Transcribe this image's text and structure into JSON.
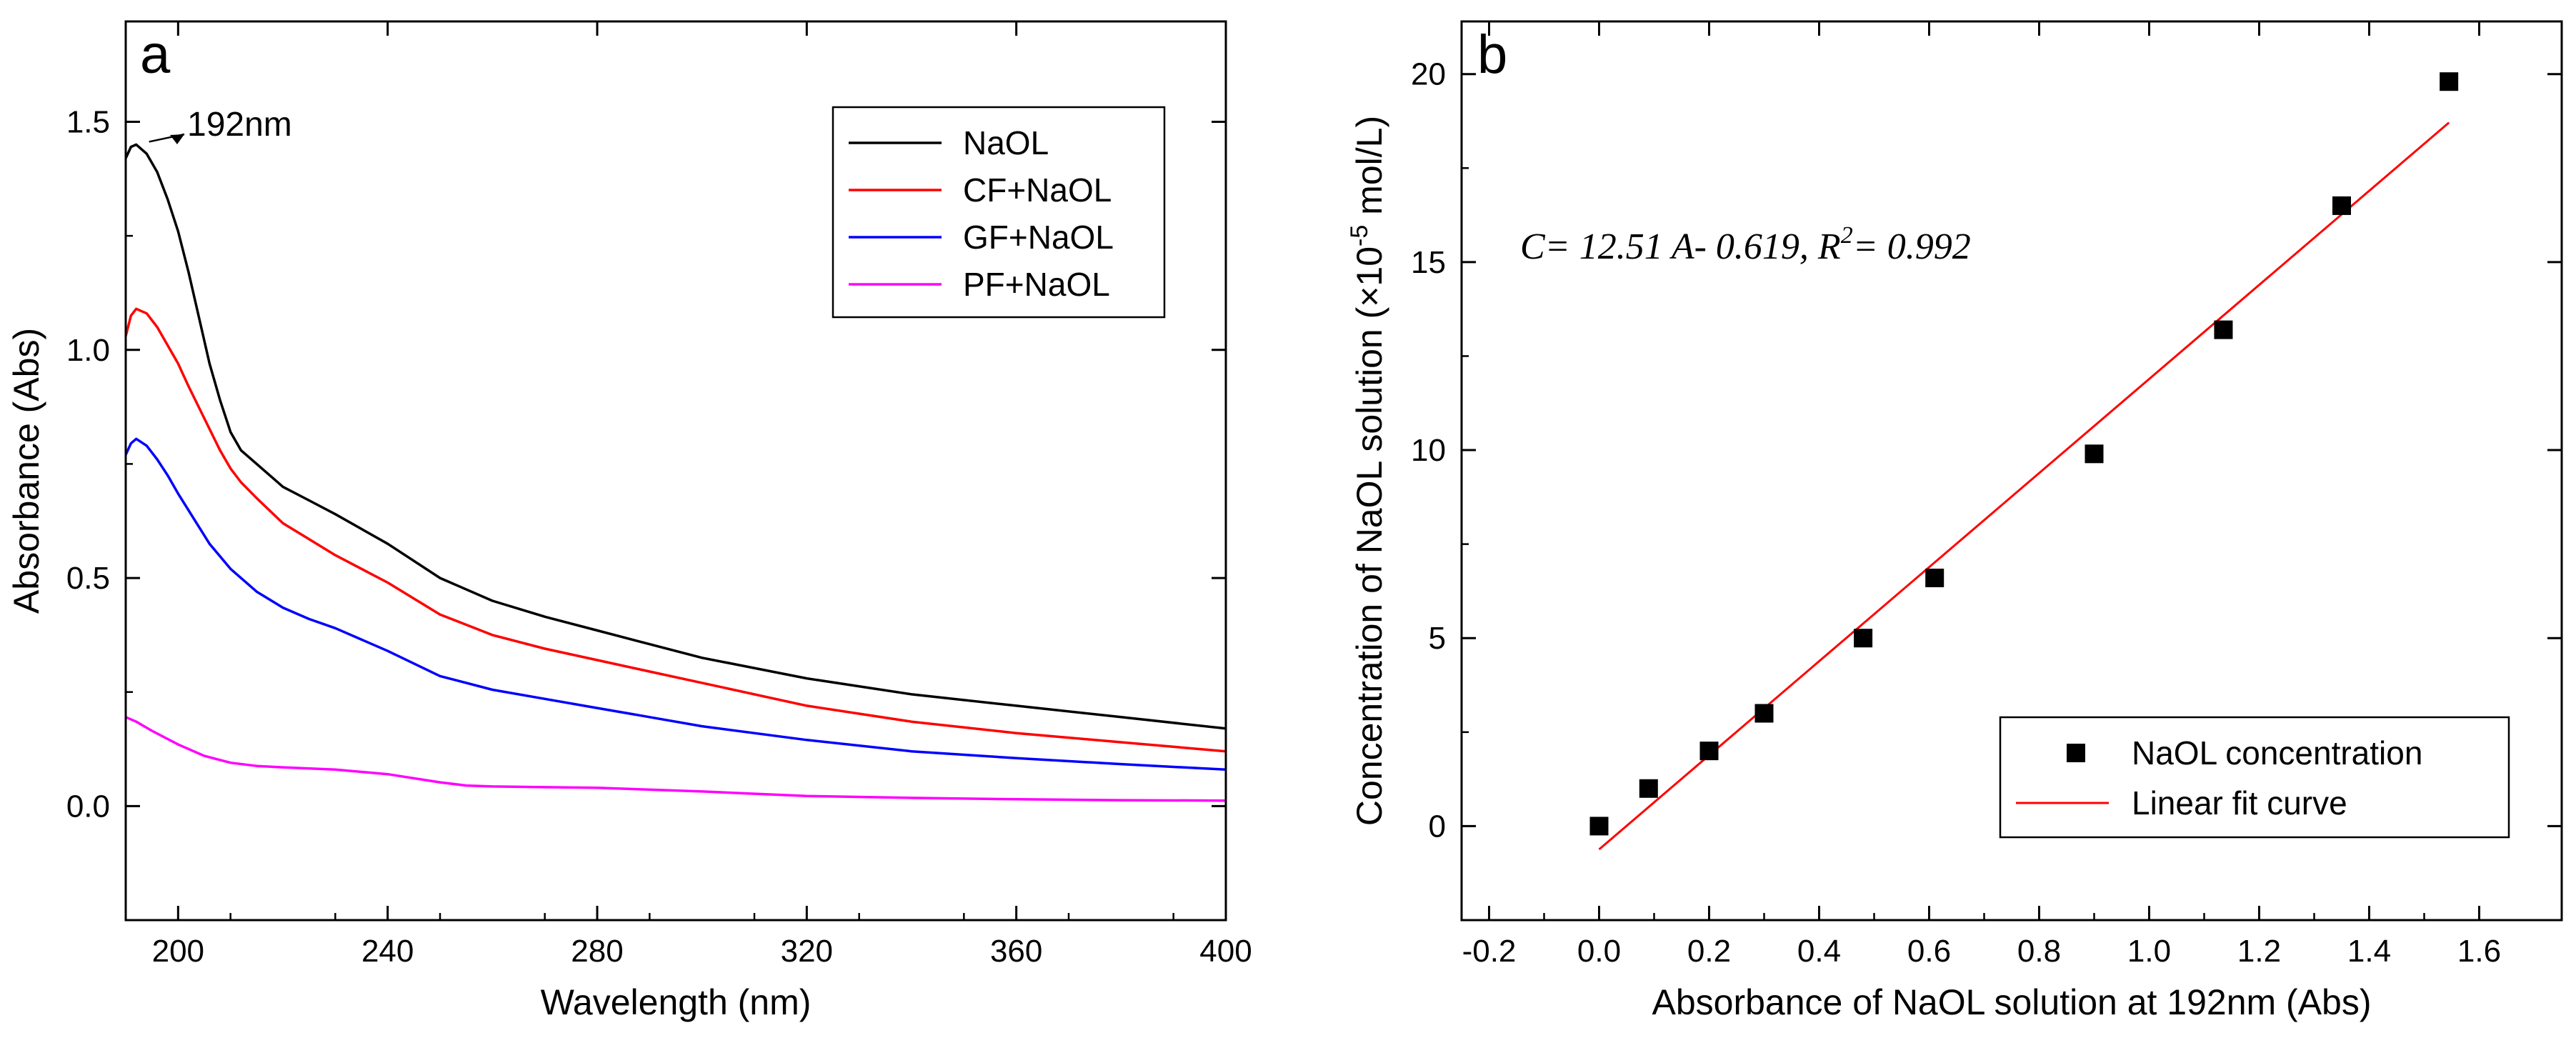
{
  "chart_data": [
    {
      "panel_label": "a",
      "type": "line",
      "title": "",
      "xlabel": "Wavelength (nm)",
      "ylabel": "Absorbance (Abs)",
      "xlim": [
        190,
        400
      ],
      "ylim": [
        -0.25,
        1.72
      ],
      "xticks": [
        200,
        240,
        280,
        320,
        360,
        400
      ],
      "xtick_labels": [
        "200",
        "240",
        "280",
        "320",
        "360",
        "400"
      ],
      "yticks": [
        0.0,
        0.5,
        1.0,
        1.5
      ],
      "ytick_labels": [
        "0.0",
        "0.5",
        "1.0",
        "1.5"
      ],
      "grid": false,
      "legend_position": "top-right",
      "annotation": "192nm",
      "annotation_point": [
        192,
        1.45
      ],
      "series": [
        {
          "name": "NaOL",
          "color": "#000000",
          "x": [
            190,
            191,
            192,
            194,
            196,
            198,
            200,
            202,
            204,
            206,
            208,
            210,
            212,
            215,
            220,
            225,
            230,
            240,
            250,
            260,
            270,
            280,
            290,
            300,
            320,
            340,
            360,
            380,
            400
          ],
          "y": [
            1.42,
            1.445,
            1.45,
            1.43,
            1.39,
            1.33,
            1.26,
            1.17,
            1.07,
            0.97,
            0.89,
            0.82,
            0.78,
            0.75,
            0.7,
            0.67,
            0.64,
            0.575,
            0.5,
            0.45,
            0.415,
            0.385,
            0.355,
            0.325,
            0.28,
            0.245,
            0.22,
            0.195,
            0.17
          ]
        },
        {
          "name": "CF+NaOL",
          "color": "#ff0000",
          "x": [
            190,
            191,
            192,
            194,
            196,
            198,
            200,
            202,
            205,
            208,
            210,
            212,
            215,
            220,
            225,
            230,
            240,
            250,
            260,
            270,
            280,
            290,
            300,
            320,
            340,
            360,
            380,
            400
          ],
          "y": [
            1.03,
            1.075,
            1.09,
            1.08,
            1.05,
            1.01,
            0.97,
            0.92,
            0.85,
            0.78,
            0.74,
            0.71,
            0.675,
            0.62,
            0.585,
            0.55,
            0.49,
            0.42,
            0.375,
            0.345,
            0.32,
            0.295,
            0.27,
            0.22,
            0.185,
            0.16,
            0.14,
            0.12
          ]
        },
        {
          "name": "GF+NaOL",
          "color": "#0000ff",
          "x": [
            190,
            191,
            192,
            194,
            196,
            198,
            200,
            203,
            206,
            210,
            215,
            220,
            225,
            230,
            240,
            250,
            260,
            270,
            280,
            290,
            300,
            320,
            340,
            360,
            380,
            400
          ],
          "y": [
            0.77,
            0.795,
            0.805,
            0.79,
            0.76,
            0.725,
            0.685,
            0.63,
            0.575,
            0.52,
            0.47,
            0.435,
            0.41,
            0.39,
            0.34,
            0.285,
            0.255,
            0.235,
            0.215,
            0.195,
            0.175,
            0.145,
            0.12,
            0.105,
            0.092,
            0.08
          ]
        },
        {
          "name": "PF+NaOL",
          "color": "#ff00ff",
          "x": [
            190,
            192,
            195,
            200,
            205,
            210,
            215,
            220,
            230,
            240,
            250,
            255,
            260,
            280,
            300,
            320,
            340,
            360,
            380,
            400
          ],
          "y": [
            0.195,
            0.185,
            0.165,
            0.135,
            0.11,
            0.095,
            0.088,
            0.085,
            0.08,
            0.07,
            0.052,
            0.045,
            0.043,
            0.04,
            0.032,
            0.022,
            0.018,
            0.015,
            0.013,
            0.012
          ]
        }
      ]
    },
    {
      "panel_label": "b",
      "type": "scatter",
      "title": "",
      "xlabel": "Absorbance of NaOL solution at 192nm (Abs)",
      "ylabel_parts": {
        "main": "Concentration of NaOL solution (×10",
        "sup": "-5",
        "tail": " mol/L)"
      },
      "xlim": [
        -0.25,
        1.75
      ],
      "ylim": [
        -2.5,
        21.4
      ],
      "xticks": [
        -0.2,
        0.0,
        0.2,
        0.4,
        0.6,
        0.8,
        1.0,
        1.2,
        1.4,
        1.6
      ],
      "xtick_labels": [
        "-0.2",
        "0.0",
        "0.2",
        "0.4",
        "0.6",
        "0.8",
        "1.0",
        "1.2",
        "1.4",
        "1.6"
      ],
      "yticks": [
        0,
        5,
        10,
        15,
        20
      ],
      "ytick_labels": [
        "0",
        "5",
        "10",
        "15",
        "20"
      ],
      "grid": false,
      "legend_position": "bottom-right",
      "equation_parts": {
        "lead": "C= 12.51 A- 0.619, R",
        "sup": "2",
        "tail": "= 0.992"
      },
      "series": [
        {
          "name": "NaOL concentration",
          "marker": "square",
          "color": "#000000",
          "x": [
            0.0,
            0.09,
            0.2,
            0.3,
            0.48,
            0.61,
            0.9,
            1.135,
            1.35,
            1.545
          ],
          "y": [
            0.0,
            1.0,
            2.0,
            3.0,
            5.0,
            6.6,
            9.9,
            13.2,
            16.5,
            19.8
          ]
        },
        {
          "name": "Linear fit curve",
          "type": "line",
          "color": "#ff0000",
          "slope": 12.51,
          "intercept": -0.619,
          "x": [
            0.0,
            1.545
          ],
          "y": [
            -0.619,
            18.709
          ]
        }
      ]
    }
  ]
}
